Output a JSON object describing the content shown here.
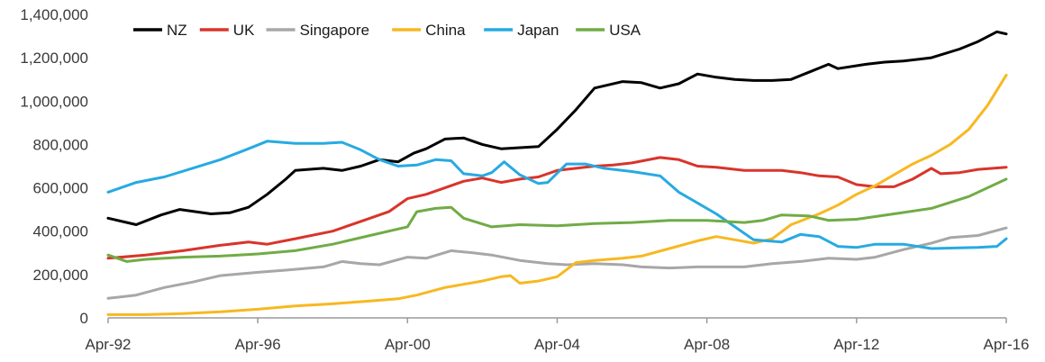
{
  "chart_data": {
    "type": "line",
    "title": "",
    "xlabel": "",
    "ylabel": "",
    "x_start": "Apr-92",
    "x_end": "Apr-16",
    "x_ticks": [
      "Apr-92",
      "Apr-96",
      "Apr-00",
      "Apr-04",
      "Apr-08",
      "Apr-12",
      "Apr-16"
    ],
    "y_ticks": [
      "0",
      "200,000",
      "400,000",
      "600,000",
      "800,000",
      "1,000,000",
      "1,200,000",
      "1,400,000"
    ],
    "ylim": [
      0,
      1400000
    ],
    "grid": false,
    "legend_position": "top",
    "series": [
      {
        "name": "NZ",
        "color": "#000000",
        "points": [
          [
            "1992-04",
            460000
          ],
          [
            "1993-01",
            430000
          ],
          [
            "1993-09",
            475000
          ],
          [
            "1994-03",
            500000
          ],
          [
            "1995-01",
            480000
          ],
          [
            "1995-07",
            485000
          ],
          [
            "1996-01",
            510000
          ],
          [
            "1996-07",
            570000
          ],
          [
            "1997-01",
            640000
          ],
          [
            "1997-04",
            680000
          ],
          [
            "1998-01",
            690000
          ],
          [
            "1998-07",
            680000
          ],
          [
            "1999-01",
            700000
          ],
          [
            "1999-07",
            730000
          ],
          [
            "2000-01",
            720000
          ],
          [
            "2000-06",
            760000
          ],
          [
            "2000-10",
            780000
          ],
          [
            "2001-04",
            825000
          ],
          [
            "2001-10",
            830000
          ],
          [
            "2002-04",
            800000
          ],
          [
            "2002-10",
            780000
          ],
          [
            "2003-04",
            785000
          ],
          [
            "2003-10",
            790000
          ],
          [
            "2004-04",
            870000
          ],
          [
            "2004-10",
            960000
          ],
          [
            "2005-04",
            1060000
          ],
          [
            "2006-01",
            1090000
          ],
          [
            "2006-07",
            1085000
          ],
          [
            "2007-01",
            1060000
          ],
          [
            "2007-07",
            1080000
          ],
          [
            "2008-01",
            1125000
          ],
          [
            "2008-07",
            1110000
          ],
          [
            "2009-01",
            1100000
          ],
          [
            "2009-07",
            1095000
          ],
          [
            "2010-01",
            1095000
          ],
          [
            "2010-07",
            1100000
          ],
          [
            "2011-01",
            1135000
          ],
          [
            "2011-07",
            1170000
          ],
          [
            "2011-10",
            1150000
          ],
          [
            "2012-07",
            1170000
          ],
          [
            "2013-01",
            1180000
          ],
          [
            "2013-07",
            1185000
          ],
          [
            "2014-04",
            1200000
          ],
          [
            "2015-01",
            1240000
          ],
          [
            "2015-07",
            1275000
          ],
          [
            "2016-01",
            1320000
          ],
          [
            "2016-04",
            1310000
          ]
        ]
      },
      {
        "name": "UK",
        "color": "#d9342b",
        "points": [
          [
            "1992-04",
            275000
          ],
          [
            "1993-04",
            290000
          ],
          [
            "1994-04",
            310000
          ],
          [
            "1995-04",
            335000
          ],
          [
            "1996-01",
            350000
          ],
          [
            "1996-07",
            340000
          ],
          [
            "1997-04",
            365000
          ],
          [
            "1998-04",
            400000
          ],
          [
            "1999-04",
            460000
          ],
          [
            "1999-10",
            490000
          ],
          [
            "2000-04",
            550000
          ],
          [
            "2000-10",
            570000
          ],
          [
            "2001-04",
            600000
          ],
          [
            "2001-10",
            630000
          ],
          [
            "2002-04",
            645000
          ],
          [
            "2002-10",
            625000
          ],
          [
            "2003-04",
            640000
          ],
          [
            "2003-10",
            650000
          ],
          [
            "2004-04",
            680000
          ],
          [
            "2004-10",
            690000
          ],
          [
            "2005-04",
            700000
          ],
          [
            "2005-10",
            705000
          ],
          [
            "2006-04",
            715000
          ],
          [
            "2007-01",
            740000
          ],
          [
            "2007-07",
            730000
          ],
          [
            "2008-01",
            700000
          ],
          [
            "2008-07",
            695000
          ],
          [
            "2009-04",
            680000
          ],
          [
            "2010-04",
            680000
          ],
          [
            "2010-10",
            670000
          ],
          [
            "2011-04",
            655000
          ],
          [
            "2011-10",
            650000
          ],
          [
            "2012-04",
            615000
          ],
          [
            "2012-10",
            605000
          ],
          [
            "2013-04",
            605000
          ],
          [
            "2013-10",
            640000
          ],
          [
            "2014-04",
            690000
          ],
          [
            "2014-07",
            665000
          ],
          [
            "2015-01",
            670000
          ],
          [
            "2015-07",
            685000
          ],
          [
            "2016-04",
            695000
          ]
        ]
      },
      {
        "name": "Singapore",
        "color": "#a7a7a7",
        "points": [
          [
            "1992-04",
            90000
          ],
          [
            "1993-01",
            105000
          ],
          [
            "1993-10",
            140000
          ],
          [
            "1994-07",
            165000
          ],
          [
            "1995-04",
            195000
          ],
          [
            "1996-04",
            210000
          ],
          [
            "1997-01",
            220000
          ],
          [
            "1998-01",
            235000
          ],
          [
            "1998-07",
            260000
          ],
          [
            "1999-01",
            250000
          ],
          [
            "1999-07",
            245000
          ],
          [
            "2000-04",
            280000
          ],
          [
            "2000-10",
            275000
          ],
          [
            "2001-06",
            310000
          ],
          [
            "2002-01",
            300000
          ],
          [
            "2002-07",
            290000
          ],
          [
            "2003-04",
            265000
          ],
          [
            "2004-01",
            250000
          ],
          [
            "2004-07",
            245000
          ],
          [
            "2005-04",
            250000
          ],
          [
            "2006-01",
            245000
          ],
          [
            "2006-07",
            235000
          ],
          [
            "2007-04",
            230000
          ],
          [
            "2008-01",
            235000
          ],
          [
            "2009-04",
            235000
          ],
          [
            "2010-01",
            250000
          ],
          [
            "2010-10",
            260000
          ],
          [
            "2011-07",
            275000
          ],
          [
            "2012-04",
            270000
          ],
          [
            "2012-10",
            280000
          ],
          [
            "2013-07",
            315000
          ],
          [
            "2014-04",
            345000
          ],
          [
            "2014-10",
            370000
          ],
          [
            "2015-07",
            380000
          ],
          [
            "2016-04",
            415000
          ]
        ]
      },
      {
        "name": "China",
        "color": "#f7b821",
        "points": [
          [
            "1992-04",
            15000
          ],
          [
            "1993-04",
            15000
          ],
          [
            "1994-04",
            20000
          ],
          [
            "1995-04",
            28000
          ],
          [
            "1996-04",
            40000
          ],
          [
            "1997-04",
            55000
          ],
          [
            "1998-04",
            65000
          ],
          [
            "1999-04",
            78000
          ],
          [
            "2000-01",
            88000
          ],
          [
            "2000-07",
            105000
          ],
          [
            "2001-04",
            140000
          ],
          [
            "2001-10",
            155000
          ],
          [
            "2002-04",
            170000
          ],
          [
            "2002-10",
            190000
          ],
          [
            "2003-01",
            195000
          ],
          [
            "2003-04",
            160000
          ],
          [
            "2003-10",
            170000
          ],
          [
            "2004-04",
            190000
          ],
          [
            "2004-10",
            255000
          ],
          [
            "2005-04",
            265000
          ],
          [
            "2006-01",
            275000
          ],
          [
            "2006-07",
            285000
          ],
          [
            "2007-04",
            320000
          ],
          [
            "2008-01",
            355000
          ],
          [
            "2008-07",
            375000
          ],
          [
            "2009-01",
            360000
          ],
          [
            "2009-07",
            345000
          ],
          [
            "2010-01",
            365000
          ],
          [
            "2010-07",
            430000
          ],
          [
            "2011-04",
            480000
          ],
          [
            "2011-10",
            520000
          ],
          [
            "2012-04",
            570000
          ],
          [
            "2012-10",
            610000
          ],
          [
            "2013-04",
            660000
          ],
          [
            "2013-10",
            710000
          ],
          [
            "2014-04",
            750000
          ],
          [
            "2014-10",
            800000
          ],
          [
            "2015-04",
            870000
          ],
          [
            "2015-10",
            980000
          ],
          [
            "2016-04",
            1120000
          ]
        ]
      },
      {
        "name": "Japan",
        "color": "#27aae1",
        "points": [
          [
            "1992-04",
            580000
          ],
          [
            "1993-01",
            625000
          ],
          [
            "1993-10",
            650000
          ],
          [
            "1994-07",
            690000
          ],
          [
            "1995-04",
            730000
          ],
          [
            "1996-01",
            780000
          ],
          [
            "1996-07",
            815000
          ],
          [
            "1997-04",
            805000
          ],
          [
            "1998-01",
            805000
          ],
          [
            "1998-07",
            810000
          ],
          [
            "1999-01",
            775000
          ],
          [
            "1999-07",
            730000
          ],
          [
            "2000-01",
            700000
          ],
          [
            "2000-07",
            705000
          ],
          [
            "2001-01",
            730000
          ],
          [
            "2001-06",
            725000
          ],
          [
            "2001-10",
            665000
          ],
          [
            "2002-04",
            655000
          ],
          [
            "2002-07",
            670000
          ],
          [
            "2002-11",
            720000
          ],
          [
            "2003-04",
            660000
          ],
          [
            "2003-10",
            620000
          ],
          [
            "2004-01",
            625000
          ],
          [
            "2004-07",
            710000
          ],
          [
            "2005-01",
            710000
          ],
          [
            "2005-07",
            690000
          ],
          [
            "2006-04",
            675000
          ],
          [
            "2007-01",
            655000
          ],
          [
            "2007-07",
            580000
          ],
          [
            "2008-01",
            530000
          ],
          [
            "2008-07",
            480000
          ],
          [
            "2009-01",
            420000
          ],
          [
            "2009-07",
            360000
          ],
          [
            "2010-04",
            350000
          ],
          [
            "2010-10",
            385000
          ],
          [
            "2011-04",
            375000
          ],
          [
            "2011-10",
            330000
          ],
          [
            "2012-04",
            325000
          ],
          [
            "2012-10",
            340000
          ],
          [
            "2013-07",
            340000
          ],
          [
            "2014-04",
            320000
          ],
          [
            "2015-07",
            325000
          ],
          [
            "2016-01",
            330000
          ],
          [
            "2016-04",
            365000
          ]
        ]
      },
      {
        "name": "USA",
        "color": "#70ac46",
        "points": [
          [
            "1992-04",
            290000
          ],
          [
            "1992-10",
            260000
          ],
          [
            "1993-04",
            270000
          ],
          [
            "1994-04",
            280000
          ],
          [
            "1995-04",
            285000
          ],
          [
            "1996-04",
            295000
          ],
          [
            "1997-04",
            310000
          ],
          [
            "1998-04",
            340000
          ],
          [
            "1999-04",
            380000
          ],
          [
            "2000-04",
            420000
          ],
          [
            "2000-07",
            490000
          ],
          [
            "2001-01",
            505000
          ],
          [
            "2001-06",
            510000
          ],
          [
            "2001-10",
            460000
          ],
          [
            "2002-07",
            420000
          ],
          [
            "2003-04",
            430000
          ],
          [
            "2004-04",
            425000
          ],
          [
            "2005-04",
            435000
          ],
          [
            "2006-04",
            440000
          ],
          [
            "2007-04",
            450000
          ],
          [
            "2008-04",
            450000
          ],
          [
            "2009-04",
            440000
          ],
          [
            "2009-10",
            450000
          ],
          [
            "2010-04",
            475000
          ],
          [
            "2011-01",
            470000
          ],
          [
            "2011-07",
            450000
          ],
          [
            "2012-04",
            455000
          ],
          [
            "2013-04",
            480000
          ],
          [
            "2014-04",
            505000
          ],
          [
            "2015-04",
            560000
          ],
          [
            "2016-04",
            640000
          ]
        ]
      }
    ]
  }
}
